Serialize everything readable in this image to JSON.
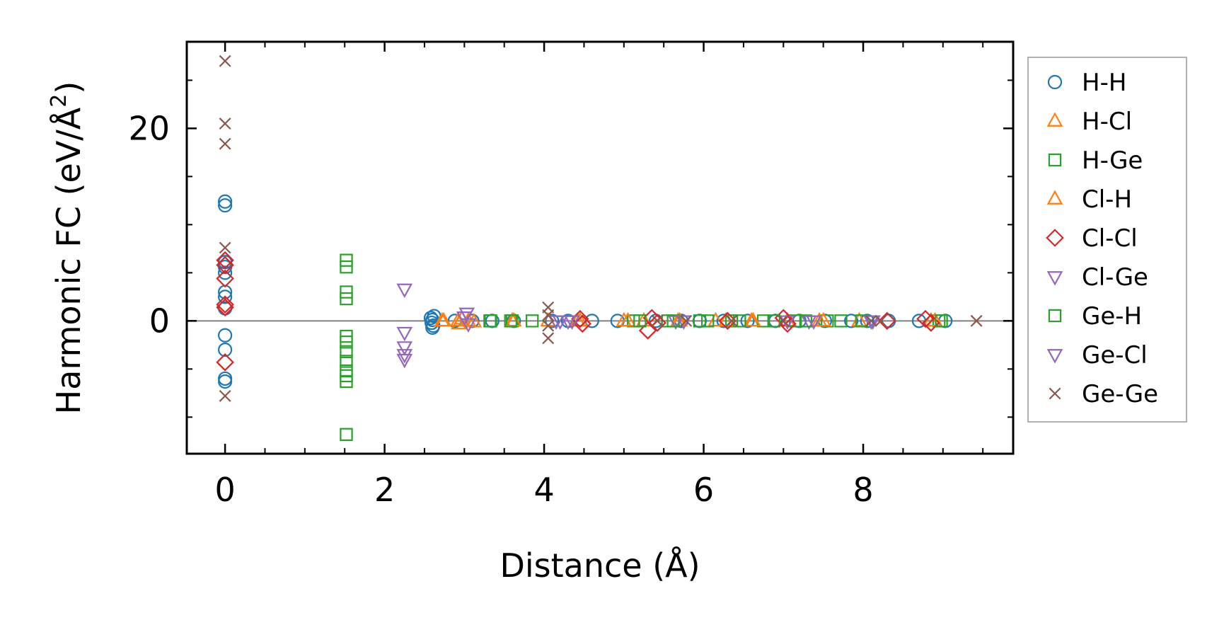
{
  "chart_data": {
    "type": "scatter",
    "title": "",
    "xlabel": "Distance (Å)",
    "ylabel_main": "Harmonic FC (eV/Å",
    "ylabel_sup": "2",
    "ylabel_close": ")",
    "xlim": [
      -0.48,
      9.88
    ],
    "ylim": [
      -13.8,
      29.0
    ],
    "xticks": [
      0,
      2,
      4,
      6,
      8
    ],
    "xtick_labels": [
      "0",
      "2",
      "4",
      "6",
      "8"
    ],
    "yticks": [
      0,
      20
    ],
    "ytick_labels": [
      "0",
      "20"
    ],
    "x_minor_step": 0.5,
    "y_minor_step": 5,
    "zero_line": true,
    "legend_position": "outside-right",
    "series": [
      {
        "name": "H-H",
        "marker": "circle",
        "color": "#1f77b4",
        "points": [
          [
            0,
            12.4
          ],
          [
            0,
            12.0
          ],
          [
            0,
            6.1
          ],
          [
            0,
            5.6
          ],
          [
            0,
            5.0
          ],
          [
            0,
            3.0
          ],
          [
            0,
            2.5
          ],
          [
            0,
            1.3
          ],
          [
            0,
            -1.5
          ],
          [
            0,
            -3.0
          ],
          [
            0,
            -6.0
          ],
          [
            0,
            -6.3
          ],
          [
            2.58,
            0.3
          ],
          [
            2.59,
            -0.2
          ],
          [
            2.6,
            0.1
          ],
          [
            2.61,
            -0.5
          ],
          [
            2.62,
            0.5
          ],
          [
            2.6,
            -0.7
          ],
          [
            2.88,
            0
          ],
          [
            3.1,
            0
          ],
          [
            3.35,
            0
          ],
          [
            3.62,
            0
          ],
          [
            4.1,
            0
          ],
          [
            4.3,
            0
          ],
          [
            4.6,
            0
          ],
          [
            4.92,
            0
          ],
          [
            5.4,
            0
          ],
          [
            5.72,
            0
          ],
          [
            5.95,
            0
          ],
          [
            6.25,
            0
          ],
          [
            6.55,
            0
          ],
          [
            6.9,
            0
          ],
          [
            7.2,
            0
          ],
          [
            7.52,
            0
          ],
          [
            7.85,
            0
          ],
          [
            8.05,
            0
          ],
          [
            8.32,
            0
          ],
          [
            8.7,
            0
          ],
          [
            9.03,
            0
          ]
        ]
      },
      {
        "name": "H-Cl",
        "marker": "triangle-up",
        "color": "#ff7f0e",
        "points": [
          [
            2.74,
            0
          ],
          [
            2.93,
            -0.3
          ],
          [
            2.97,
            0.2
          ],
          [
            3.12,
            -0.1
          ],
          [
            3.6,
            0
          ],
          [
            4.05,
            0
          ],
          [
            4.45,
            0
          ],
          [
            5.0,
            0
          ],
          [
            5.25,
            0
          ],
          [
            5.7,
            0
          ],
          [
            6.15,
            0
          ],
          [
            6.6,
            0
          ],
          [
            7.05,
            0
          ],
          [
            7.45,
            0
          ],
          [
            7.95,
            0
          ],
          [
            8.85,
            0
          ]
        ]
      },
      {
        "name": "H-Ge",
        "marker": "square",
        "color": "#2ca02c",
        "points": [
          [
            1.52,
            6.3
          ],
          [
            1.52,
            5.6
          ],
          [
            1.52,
            3.0
          ],
          [
            1.52,
            2.3
          ],
          [
            1.52,
            -1.6
          ],
          [
            1.52,
            -2.2
          ],
          [
            1.52,
            -3.2
          ],
          [
            1.52,
            -4.2
          ],
          [
            1.52,
            -5.2
          ],
          [
            1.52,
            -5.7
          ],
          [
            1.52,
            -6.3
          ],
          [
            1.52,
            -11.8
          ],
          [
            3.32,
            0
          ],
          [
            3.6,
            0
          ],
          [
            3.85,
            0
          ],
          [
            5.12,
            0
          ],
          [
            5.55,
            0
          ],
          [
            5.95,
            0
          ],
          [
            6.35,
            0
          ],
          [
            6.75,
            0
          ],
          [
            7.15,
            0
          ],
          [
            7.55,
            0
          ],
          [
            7.98,
            0
          ],
          [
            8.95,
            0
          ]
        ]
      },
      {
        "name": "Cl-H",
        "marker": "triangle-up",
        "color": "#ff7f0e",
        "points": [
          [
            2.72,
            0
          ],
          [
            2.92,
            0
          ],
          [
            3.05,
            0
          ],
          [
            3.62,
            0
          ],
          [
            4.42,
            0
          ],
          [
            5.05,
            0
          ],
          [
            5.68,
            0
          ],
          [
            6.28,
            0
          ],
          [
            6.62,
            0
          ],
          [
            7.5,
            0
          ],
          [
            8.9,
            0
          ]
        ]
      },
      {
        "name": "Cl-Cl",
        "marker": "diamond",
        "color": "#d62728",
        "points": [
          [
            0,
            6.3
          ],
          [
            0,
            5.8
          ],
          [
            0,
            4.4
          ],
          [
            0,
            1.7
          ],
          [
            0,
            1.4
          ],
          [
            0,
            -4.3
          ],
          [
            4.45,
            0.2
          ],
          [
            4.48,
            -0.3
          ],
          [
            5.3,
            -1.0
          ],
          [
            5.35,
            0.3
          ],
          [
            5.42,
            -0.2
          ],
          [
            6.3,
            0
          ],
          [
            7.0,
            0.3
          ],
          [
            7.05,
            -0.3
          ],
          [
            8.3,
            0
          ],
          [
            8.78,
            0.2
          ],
          [
            8.85,
            -0.2
          ]
        ]
      },
      {
        "name": "Cl-Ge",
        "marker": "triangle-down",
        "color": "#9467bd",
        "points": [
          [
            2.25,
            3.3
          ],
          [
            2.25,
            -1.2
          ],
          [
            2.25,
            -2.7
          ],
          [
            2.25,
            -3.5
          ],
          [
            2.25,
            -4.0
          ],
          [
            3.03,
            0.8
          ],
          [
            3.05,
            -0.3
          ],
          [
            4.2,
            0
          ],
          [
            4.35,
            0
          ],
          [
            5.65,
            0
          ],
          [
            7.05,
            0
          ],
          [
            7.32,
            0
          ],
          [
            8.1,
            0
          ]
        ]
      },
      {
        "name": "Ge-H",
        "marker": "square",
        "color": "#2ca02c",
        "points": [
          [
            3.33,
            0
          ],
          [
            3.58,
            0
          ],
          [
            5.2,
            0
          ],
          [
            5.62,
            0
          ],
          [
            6.05,
            0
          ],
          [
            6.45,
            0
          ],
          [
            6.88,
            0
          ],
          [
            7.28,
            0
          ],
          [
            7.72,
            0
          ],
          [
            8.98,
            0
          ]
        ]
      },
      {
        "name": "Ge-Cl",
        "marker": "triangle-down",
        "color": "#9467bd",
        "points": [
          [
            3.0,
            0.4
          ],
          [
            4.15,
            0
          ],
          [
            4.3,
            0
          ],
          [
            5.75,
            0
          ],
          [
            7.38,
            0
          ],
          [
            8.12,
            0
          ]
        ]
      },
      {
        "name": "Ge-Ge",
        "marker": "x",
        "color": "#8c564b",
        "points": [
          [
            0,
            27.0
          ],
          [
            0,
            20.5
          ],
          [
            0,
            18.4
          ],
          [
            0,
            7.6
          ],
          [
            0,
            -7.8
          ],
          [
            4.05,
            1.4
          ],
          [
            4.05,
            0.6
          ],
          [
            4.05,
            -0.5
          ],
          [
            4.05,
            -1.8
          ],
          [
            5.42,
            0
          ],
          [
            5.78,
            0
          ],
          [
            6.35,
            0
          ],
          [
            7.0,
            0
          ],
          [
            8.1,
            0
          ],
          [
            8.22,
            0
          ],
          [
            9.42,
            0
          ]
        ]
      }
    ]
  }
}
